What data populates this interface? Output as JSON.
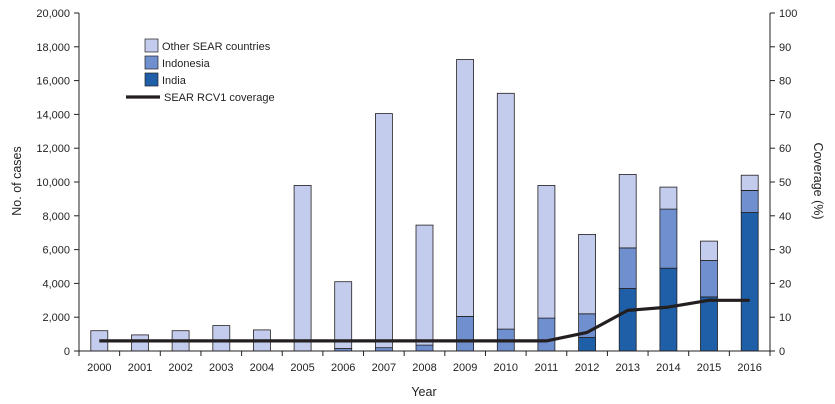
{
  "chart_data": {
    "type": "bar",
    "stacked": true,
    "categories": [
      "2000",
      "2001",
      "2002",
      "2003",
      "2004",
      "2005",
      "2006",
      "2007",
      "2008",
      "2009",
      "2010",
      "2011",
      "2012",
      "2013",
      "2014",
      "2015",
      "2016"
    ],
    "series": [
      {
        "name": "India",
        "color": "#1f5fa8",
        "values": [
          0,
          0,
          0,
          0,
          0,
          0,
          0,
          0,
          0,
          0,
          0,
          0,
          800,
          3700,
          4900,
          3200,
          8200
        ]
      },
      {
        "name": "Indonesia",
        "color": "#6f8fcf",
        "values": [
          0,
          0,
          0,
          0,
          0,
          0,
          150,
          200,
          350,
          2050,
          1300,
          1950,
          1400,
          2400,
          3500,
          2150,
          1300
        ]
      },
      {
        "name": "Other SEAR countries",
        "color": "#c3ccec",
        "values": [
          1200,
          950,
          1200,
          1500,
          1250,
          9800,
          3950,
          13850,
          7100,
          15200,
          13950,
          7850,
          4700,
          4350,
          1300,
          1150,
          900
        ]
      }
    ],
    "line_series": {
      "name": "SEAR RCV1 coverage",
      "color": "#231f20",
      "axis": "right",
      "values": [
        3,
        3,
        3,
        3,
        3,
        3,
        3,
        3,
        3,
        3,
        3,
        3,
        5.5,
        12,
        13,
        15,
        15
      ]
    },
    "xlabel": "Year",
    "ylabel": "No. of cases",
    "ylabel_right": "Coverage (%)",
    "ylim": [
      0,
      20000
    ],
    "ylim_right": [
      0,
      100
    ],
    "yticks": [
      "0",
      "2,000",
      "4,000",
      "6,000",
      "8,000",
      "10,000",
      "12,000",
      "14,000",
      "16,000",
      "18,000",
      "20,000"
    ],
    "yticks_right": [
      "0",
      "10",
      "20",
      "30",
      "40",
      "50",
      "60",
      "70",
      "80",
      "90",
      "100"
    ],
    "grid": false,
    "legend_placement": "top-left",
    "legend": [
      "Other SEAR countries",
      "Indonesia",
      "India",
      "SEAR RCV1 coverage"
    ]
  }
}
